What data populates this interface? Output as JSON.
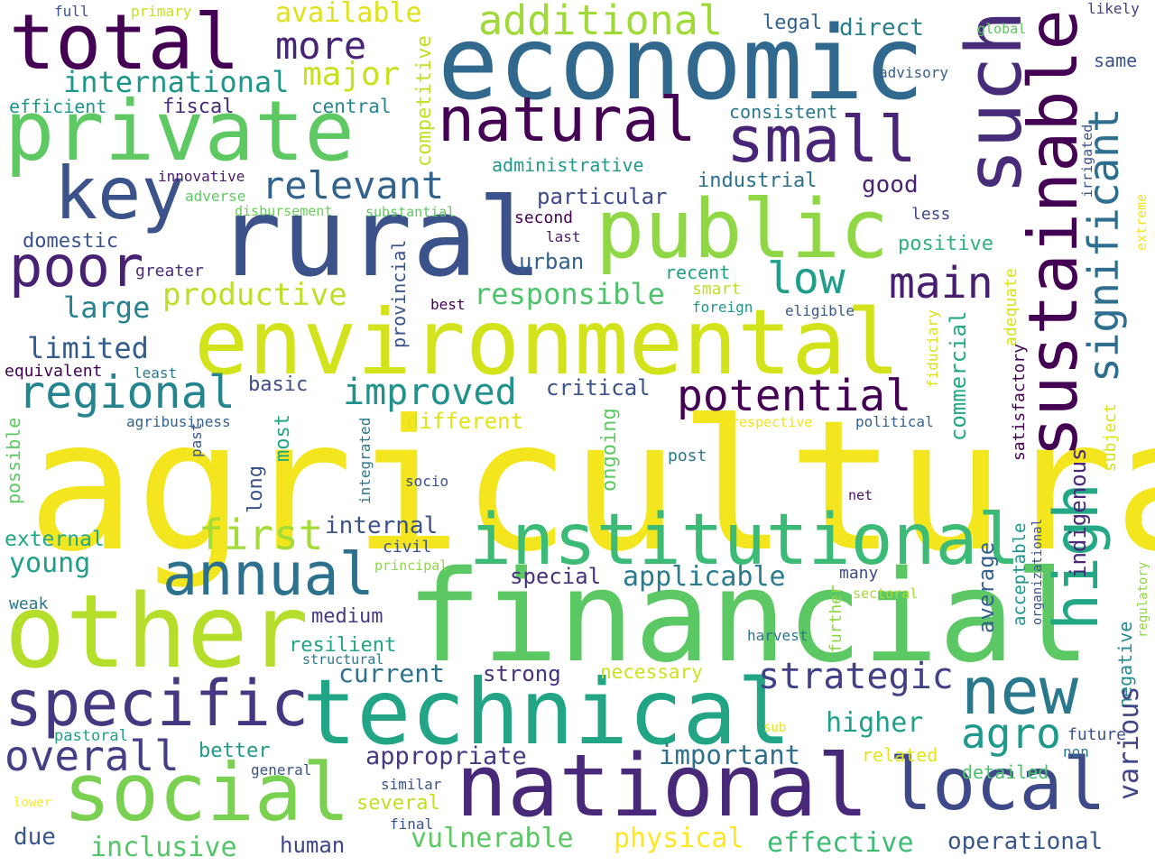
{
  "words": [
    {
      "text": "agricultural",
      "color": "#f4e61e",
      "rot": 0
    },
    {
      "text": "financial",
      "color": "#5cc863",
      "rot": 0
    },
    {
      "text": "rural",
      "color": "#3b528b",
      "rot": 0
    },
    {
      "text": "economic",
      "color": "#31688e",
      "rot": 0
    },
    {
      "text": "environmental",
      "color": "#d2e21b",
      "rot": 0
    },
    {
      "text": "other",
      "color": "#b5de2b",
      "rot": 0
    },
    {
      "text": "technical",
      "color": "#21a585",
      "rot": 0
    },
    {
      "text": "national",
      "color": "#482878",
      "rot": 0
    },
    {
      "text": "social",
      "color": "#7ad151",
      "rot": 0
    },
    {
      "text": "private",
      "color": "#5ec962",
      "rot": 0
    },
    {
      "text": "total",
      "color": "#440154",
      "rot": 0
    },
    {
      "text": "public",
      "color": "#8fd744",
      "rot": 0
    },
    {
      "text": "such",
      "color": "#472c7a",
      "rot": -90
    },
    {
      "text": "sustainable",
      "color": "#440154",
      "rot": -90
    },
    {
      "text": "institutional",
      "color": "#3bbb75",
      "rot": 0
    },
    {
      "text": "specific",
      "color": "#453781",
      "rot": 0
    },
    {
      "text": "local",
      "color": "#3e4989",
      "rot": 0
    },
    {
      "text": "key",
      "color": "#3b528b",
      "rot": 0
    },
    {
      "text": "natural",
      "color": "#440154",
      "rot": 0
    },
    {
      "text": "small",
      "color": "#482576",
      "rot": 0
    },
    {
      "text": "high",
      "color": "#22a884",
      "rot": -90
    },
    {
      "text": "new",
      "color": "#2a788e",
      "rot": 0
    },
    {
      "text": "annual",
      "color": "#2c728e",
      "rot": 0
    },
    {
      "text": "poor",
      "color": "#482173",
      "rot": 0
    },
    {
      "text": "regional",
      "color": "#25858e",
      "rot": 0
    },
    {
      "text": "potential",
      "color": "#440154",
      "rot": 0
    },
    {
      "text": "additional",
      "color": "#a0da39",
      "rot": 0
    },
    {
      "text": "main",
      "color": "#481f70",
      "rot": 0
    },
    {
      "text": "significant",
      "color": "#2e6e8e",
      "rot": -90
    },
    {
      "text": "improved",
      "color": "#21918c",
      "rot": 0
    },
    {
      "text": "relevant",
      "color": "#33638d",
      "rot": 0
    },
    {
      "text": "strategic",
      "color": "#424086",
      "rot": 0
    },
    {
      "text": "first",
      "color": "#a5db36",
      "rot": 0
    },
    {
      "text": "overall",
      "color": "#433e85",
      "rot": 0
    },
    {
      "text": "agro",
      "color": "#1f9a8a",
      "rot": 0
    },
    {
      "text": "low",
      "color": "#1f9e89",
      "rot": 0
    },
    {
      "text": "responsible",
      "color": "#4ec36b",
      "rot": 0
    },
    {
      "text": "more",
      "color": "#482475",
      "rot": 0
    },
    {
      "text": "major",
      "color": "#c8e020",
      "rot": 0
    },
    {
      "text": "international",
      "color": "#1f968b",
      "rot": 0
    },
    {
      "text": "productive",
      "color": "#bddf26",
      "rot": 0
    },
    {
      "text": "available",
      "color": "#dde318",
      "rot": 0
    },
    {
      "text": "limited",
      "color": "#365c8d",
      "rot": 0
    },
    {
      "text": "large",
      "color": "#26828e",
      "rot": 0
    },
    {
      "text": "applicable",
      "color": "#297b8e",
      "rot": 0
    },
    {
      "text": "young",
      "color": "#1f9f88",
      "rot": 0
    },
    {
      "text": "appropriate",
      "color": "#443a83",
      "rot": 0
    },
    {
      "text": "operational",
      "color": "#39568c",
      "rot": 0
    },
    {
      "text": "effective",
      "color": "#3dbc74",
      "rot": 0
    },
    {
      "text": "vulnerable",
      "color": "#5cc863",
      "rot": 0
    },
    {
      "text": "physical",
      "color": "#fde725",
      "rot": 0
    },
    {
      "text": "inclusive",
      "color": "#54c568",
      "rot": 0
    },
    {
      "text": "human",
      "color": "#3f4788",
      "rot": 0
    },
    {
      "text": "higher",
      "color": "#1fa088",
      "rot": 0
    },
    {
      "text": "important",
      "color": "#2d708e",
      "rot": 0
    },
    {
      "text": "current",
      "color": "#2c718e",
      "rot": 0
    },
    {
      "text": "resilient",
      "color": "#20a486",
      "rot": 0
    },
    {
      "text": "medium",
      "color": "#443983",
      "rot": 0
    },
    {
      "text": "internal",
      "color": "#3b528b",
      "rot": 0
    },
    {
      "text": "strong",
      "color": "#46307e",
      "rot": 0
    },
    {
      "text": "necessary",
      "color": "#cde11d",
      "rot": 0
    },
    {
      "text": "special",
      "color": "#46327e",
      "rot": 0
    },
    {
      "text": "better",
      "color": "#1f9a8a",
      "rot": 0
    },
    {
      "text": "several",
      "color": "#c2df23",
      "rot": 0
    },
    {
      "text": "due",
      "color": "#3a548c",
      "rot": 0
    },
    {
      "text": "external",
      "color": "#22a785",
      "rot": 0
    },
    {
      "text": "different",
      "color": "#e2e418",
      "rot": 0
    },
    {
      "text": "critical",
      "color": "#3b528b",
      "rot": 0
    },
    {
      "text": "basic",
      "color": "#3e4c8a",
      "rot": 0
    },
    {
      "text": "particular",
      "color": "#3e4a89",
      "rot": 0
    },
    {
      "text": "industrial",
      "color": "#2d708e",
      "rot": 0
    },
    {
      "text": "good",
      "color": "#482475",
      "rot": 0
    },
    {
      "text": "positive",
      "color": "#2db27d",
      "rot": 0
    },
    {
      "text": "direct",
      "color": "#277f8e",
      "rot": 0
    },
    {
      "text": "legal",
      "color": "#33638d",
      "rot": 0
    },
    {
      "text": "consistent",
      "color": "#2a788e",
      "rot": 0
    },
    {
      "text": "central",
      "color": "#24868e",
      "rot": 0
    },
    {
      "text": "fiscal",
      "color": "#472d7b",
      "rot": 0
    },
    {
      "text": "efficient",
      "color": "#1f958b",
      "rot": 0
    },
    {
      "text": "administrative",
      "color": "#1f998a",
      "rot": 0
    },
    {
      "text": "domestic",
      "color": "#3b528b",
      "rot": 0
    },
    {
      "text": "greater",
      "color": "#472d7b",
      "rot": 0
    },
    {
      "text": "urban",
      "color": "#34618d",
      "rot": 0
    },
    {
      "text": "recent",
      "color": "#1f9e89",
      "rot": 0
    },
    {
      "text": "smart",
      "color": "#c0df25",
      "rot": 0
    },
    {
      "text": "foreign",
      "color": "#1f988b",
      "rot": 0
    },
    {
      "text": "eligible",
      "color": "#38598c",
      "rot": 0
    },
    {
      "text": "best",
      "color": "#440154",
      "rot": 0
    },
    {
      "text": "second",
      "color": "#440154",
      "rot": 0
    },
    {
      "text": "last",
      "color": "#481c6e",
      "rot": 0
    },
    {
      "text": "less",
      "color": "#3f4788",
      "rot": 0
    },
    {
      "text": "same",
      "color": "#3b528b",
      "rot": 0
    },
    {
      "text": "advisory",
      "color": "#34618d",
      "rot": 0
    },
    {
      "text": "global",
      "color": "#5ec962",
      "rot": 0
    },
    {
      "text": "likely",
      "color": "#433e85",
      "rot": 0
    },
    {
      "text": "full",
      "color": "#3a548c",
      "rot": 0
    },
    {
      "text": "primary",
      "color": "#c8e020",
      "rot": 0
    },
    {
      "text": "innovative",
      "color": "#481b6d",
      "rot": 0
    },
    {
      "text": "adverse",
      "color": "#5ec962",
      "rot": 0
    },
    {
      "text": "disbursement",
      "color": "#6ccd5a",
      "rot": 0
    },
    {
      "text": "substantial",
      "color": "#5ec962",
      "rot": 0
    },
    {
      "text": "equivalent",
      "color": "#440154",
      "rot": 0
    },
    {
      "text": "least",
      "color": "#2a788e",
      "rot": 0
    },
    {
      "text": "agribusiness",
      "color": "#33638d",
      "rot": 0
    },
    {
      "text": "respective",
      "color": "#f1e51d",
      "rot": 0
    },
    {
      "text": "political",
      "color": "#34618d",
      "rot": 0
    },
    {
      "text": "post",
      "color": "#2a788e",
      "rot": 0
    },
    {
      "text": "socio",
      "color": "#3b528b",
      "rot": 0
    },
    {
      "text": "net",
      "color": "#471063",
      "rot": 0
    },
    {
      "text": "civil",
      "color": "#3b528b",
      "rot": 0
    },
    {
      "text": "principal",
      "color": "#8fd744",
      "rot": 0
    },
    {
      "text": "many",
      "color": "#3e4a89",
      "rot": 0
    },
    {
      "text": "sectoral",
      "color": "#a8db34",
      "rot": 0
    },
    {
      "text": "harvest",
      "color": "#2c728e",
      "rot": 0
    },
    {
      "text": "weak",
      "color": "#2a788e",
      "rot": 0
    },
    {
      "text": "structural",
      "color": "#2a788e",
      "rot": 0
    },
    {
      "text": "pastoral",
      "color": "#1fa287",
      "rot": 0
    },
    {
      "text": "general",
      "color": "#3b528b",
      "rot": 0
    },
    {
      "text": "similar",
      "color": "#3b528b",
      "rot": 0
    },
    {
      "text": "lower",
      "color": "#fde725",
      "rot": 0
    },
    {
      "text": "final",
      "color": "#3b528b",
      "rot": 0
    },
    {
      "text": "related",
      "color": "#e5e419",
      "rot": 0
    },
    {
      "text": "detailed",
      "color": "#4ac16d",
      "rot": 0
    },
    {
      "text": "future",
      "color": "#3b528b",
      "rot": 0
    },
    {
      "text": "non",
      "color": "#2a788e",
      "rot": 0
    },
    {
      "text": "sub",
      "color": "#e5e419",
      "rot": 0
    },
    {
      "text": "competitive",
      "color": "#c2df23",
      "rot": -90
    },
    {
      "text": "irrigated",
      "color": "#3b528b",
      "rot": -90
    },
    {
      "text": "extreme",
      "color": "#f1e51d",
      "rot": -90
    },
    {
      "text": "provincial",
      "color": "#3b528b",
      "rot": -90
    },
    {
      "text": "commercial",
      "color": "#22a884",
      "rot": -90
    },
    {
      "text": "adequate",
      "color": "#d8e219",
      "rot": -90
    },
    {
      "text": "fiduciary",
      "color": "#d8e219",
      "rot": -90
    },
    {
      "text": "subject",
      "color": "#d8e219",
      "rot": -90
    },
    {
      "text": "satisfactory",
      "color": "#440154",
      "rot": -90
    },
    {
      "text": "indigenous",
      "color": "#482878",
      "rot": -90
    },
    {
      "text": "acceptable",
      "color": "#20928c",
      "rot": -90
    },
    {
      "text": "average",
      "color": "#34618d",
      "rot": -90
    },
    {
      "text": "negative",
      "color": "#228c8d",
      "rot": -90
    },
    {
      "text": "various",
      "color": "#414487",
      "rot": -90
    },
    {
      "text": "organizational",
      "color": "#3b528b",
      "rot": -90
    },
    {
      "text": "regulatory",
      "color": "#8fd744",
      "rot": -90
    },
    {
      "text": "further",
      "color": "#8fd744",
      "rot": -90
    },
    {
      "text": "ongoing",
      "color": "#5ec962",
      "rot": -90
    },
    {
      "text": "most",
      "color": "#22a884",
      "rot": -90
    },
    {
      "text": "long",
      "color": "#3b528b",
      "rot": -90
    },
    {
      "text": "integrated",
      "color": "#2a788e",
      "rot": -90
    },
    {
      "text": "past",
      "color": "#3b528b",
      "rot": -90
    },
    {
      "text": "possible",
      "color": "#5ec962",
      "rot": -90
    }
  ]
}
